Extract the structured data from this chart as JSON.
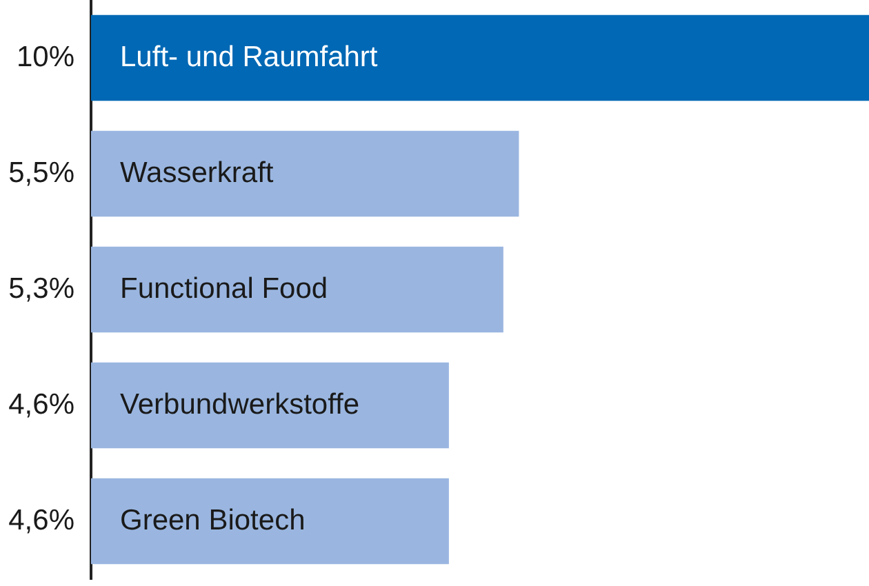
{
  "chart_data": {
    "type": "bar",
    "orientation": "horizontal",
    "categories": [
      "Luft- und Raumfahrt",
      "Wasserkraft",
      "Functional Food",
      "Verbundwerkstoffe",
      "Green Biotech"
    ],
    "values": [
      10,
      5.5,
      5.3,
      4.6,
      4.6
    ],
    "colors": [
      "#0068b4",
      "#9ab6e0",
      "#9ab6e0",
      "#9ab6e0",
      "#9ab6e0"
    ],
    "value_labels": [
      "10%",
      "5,5%",
      "5,3%",
      "4,6%",
      "4,6%"
    ],
    "xlim": [
      0,
      10
    ],
    "tick_labels": "y",
    "grid": false,
    "legend": false
  }
}
